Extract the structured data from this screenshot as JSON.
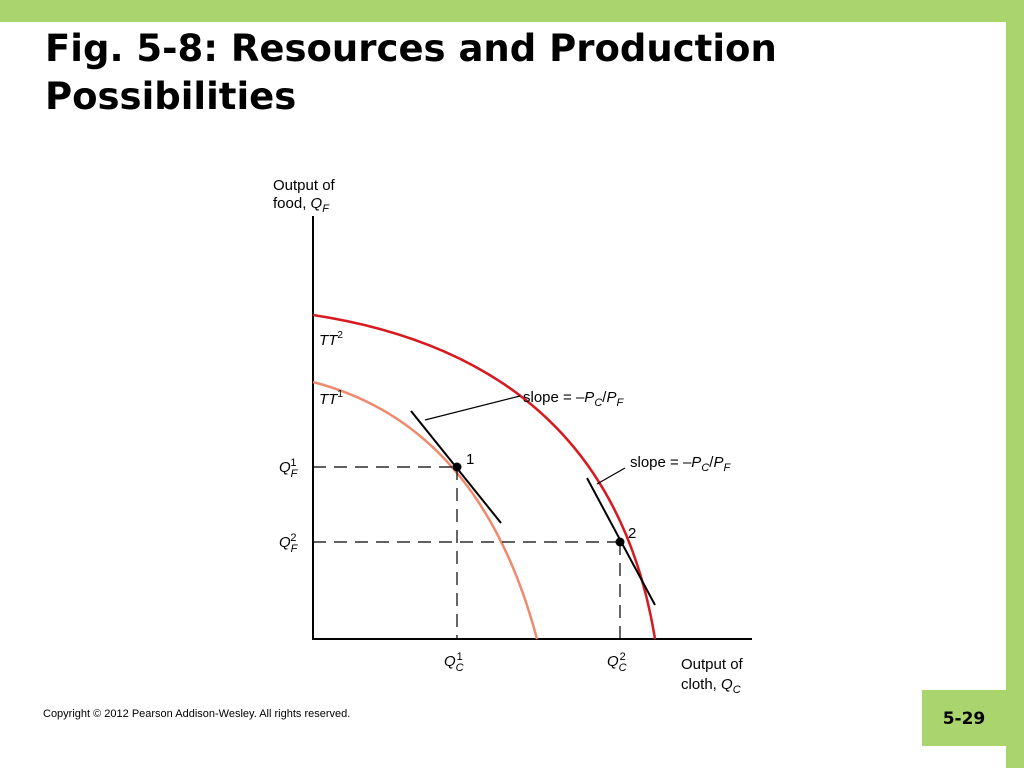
{
  "slide": {
    "title": "Fig. 5-8:  Resources and Production\nPossibilities",
    "copyright": "Copyright © 2012 Pearson Addison-Wesley. All rights reserved.",
    "page_number": "5-29"
  },
  "colors": {
    "background_green": "#a9d46e",
    "tt1_curve": "#f08a6e",
    "tt2_curve": "#d71920"
  },
  "diagram": {
    "y_axis_label": {
      "line1": "Output of",
      "line2_prefix": "food, ",
      "line2_var": "Q",
      "line2_sub": "F"
    },
    "x_axis_label": {
      "line1": "Output of",
      "line2_prefix": "cloth, ",
      "line2_var": "Q",
      "line2_sub": "C"
    },
    "curves": {
      "tt2": {
        "base": "TT",
        "sup": "2"
      },
      "tt1": {
        "base": "TT",
        "sup": "1"
      }
    },
    "slope_labels": {
      "slope_1": {
        "prefix": "slope = –",
        "p1": "P",
        "s1": "C",
        "slash": "/",
        "p2": "P",
        "s2": "F"
      },
      "slope_2": {
        "prefix": "slope = –",
        "p1": "P",
        "s1": "C",
        "slash": "/",
        "p2": "P",
        "s2": "F"
      }
    },
    "points": {
      "point_1": {
        "label": "1"
      },
      "point_2": {
        "label": "2"
      }
    },
    "y_ticks": {
      "qf1": {
        "var": "Q",
        "sub": "F",
        "sup": "1"
      },
      "qf2": {
        "var": "Q",
        "sub": "F",
        "sup": "2"
      }
    },
    "x_ticks": {
      "qc1": {
        "var": "Q",
        "sub": "C",
        "sup": "1"
      },
      "qc2": {
        "var": "Q",
        "sub": "C",
        "sup": "2"
      }
    }
  }
}
